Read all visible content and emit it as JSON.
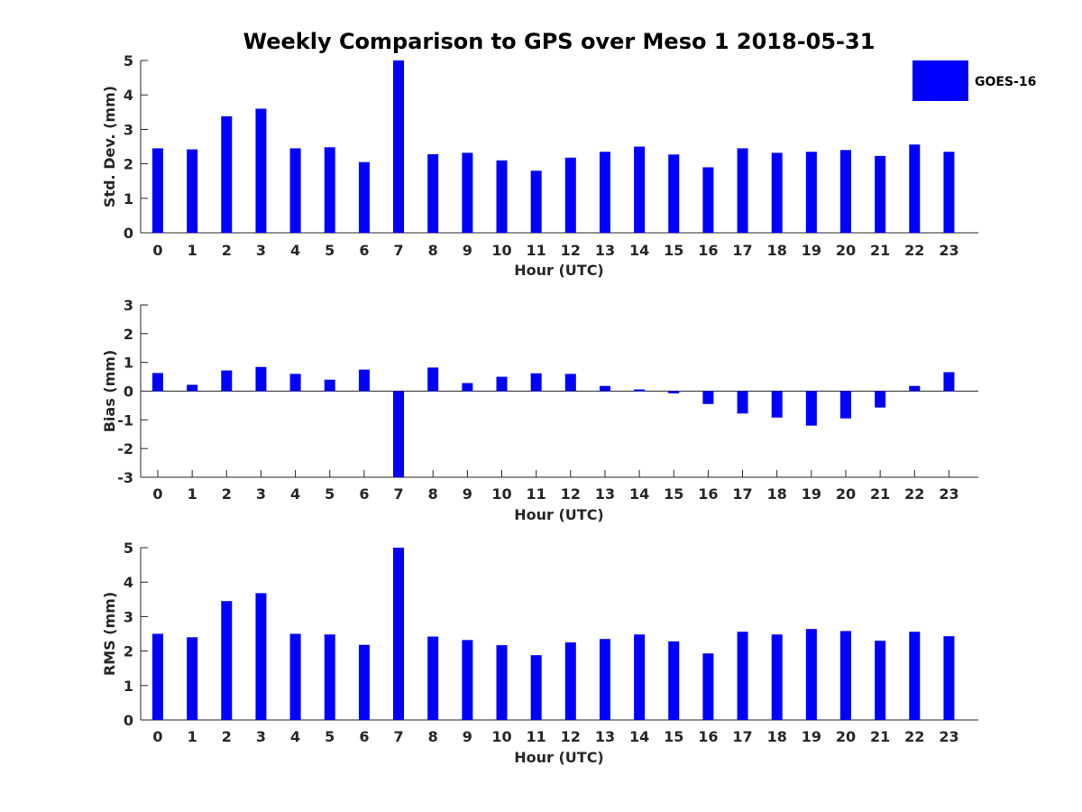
{
  "chart_data": [
    {
      "type": "bar",
      "title": "Weekly Comparison to GPS over Meso 1 2018-05-31",
      "xlabel": "Hour (UTC)",
      "ylabel": "Std. Dev. (mm)",
      "ylim": [
        0,
        5
      ],
      "yticks": [
        0,
        1,
        2,
        3,
        4,
        5
      ],
      "categories": [
        "0",
        "1",
        "2",
        "3",
        "4",
        "5",
        "6",
        "7",
        "8",
        "9",
        "10",
        "11",
        "12",
        "13",
        "14",
        "15",
        "16",
        "17",
        "18",
        "19",
        "20",
        "21",
        "22",
        "23"
      ],
      "series": [
        {
          "name": "GOES-16",
          "color": "#0000ff",
          "values": [
            2.45,
            2.42,
            3.38,
            3.6,
            2.45,
            2.48,
            2.05,
            5.0,
            2.28,
            2.32,
            2.1,
            1.8,
            2.18,
            2.35,
            2.5,
            2.27,
            1.9,
            2.45,
            2.32,
            2.35,
            2.4,
            2.23,
            2.56,
            2.35
          ]
        }
      ],
      "legend": {
        "position": "top-right",
        "entries": [
          "GOES-16"
        ]
      }
    },
    {
      "type": "bar",
      "xlabel": "Hour (UTC)",
      "ylabel": "Bias (mm)",
      "ylim": [
        -3,
        3
      ],
      "yticks": [
        -3,
        -2,
        -1,
        0,
        1,
        2,
        3
      ],
      "categories": [
        "0",
        "1",
        "2",
        "3",
        "4",
        "5",
        "6",
        "7",
        "8",
        "9",
        "10",
        "11",
        "12",
        "13",
        "14",
        "15",
        "16",
        "17",
        "18",
        "19",
        "20",
        "21",
        "22",
        "23"
      ],
      "series": [
        {
          "name": "GOES-16",
          "color": "#0000ff",
          "values": [
            0.63,
            0.22,
            0.72,
            0.84,
            0.6,
            0.4,
            0.75,
            -3.0,
            0.82,
            0.28,
            0.5,
            0.62,
            0.6,
            0.18,
            0.06,
            -0.08,
            -0.45,
            -0.78,
            -0.92,
            -1.2,
            -0.95,
            -0.57,
            0.18,
            0.66
          ]
        }
      ]
    },
    {
      "type": "bar",
      "xlabel": "Hour (UTC)",
      "ylabel": "RMS (mm)",
      "ylim": [
        0,
        5
      ],
      "yticks": [
        0,
        1,
        2,
        3,
        4,
        5
      ],
      "categories": [
        "0",
        "1",
        "2",
        "3",
        "4",
        "5",
        "6",
        "7",
        "8",
        "9",
        "10",
        "11",
        "12",
        "13",
        "14",
        "15",
        "16",
        "17",
        "18",
        "19",
        "20",
        "21",
        "22",
        "23"
      ],
      "series": [
        {
          "name": "GOES-16",
          "color": "#0000ff",
          "values": [
            2.5,
            2.4,
            3.45,
            3.68,
            2.5,
            2.48,
            2.18,
            5.0,
            2.42,
            2.32,
            2.17,
            1.88,
            2.25,
            2.35,
            2.48,
            2.28,
            1.93,
            2.56,
            2.48,
            2.64,
            2.58,
            2.3,
            2.56,
            2.43
          ]
        }
      ]
    }
  ]
}
